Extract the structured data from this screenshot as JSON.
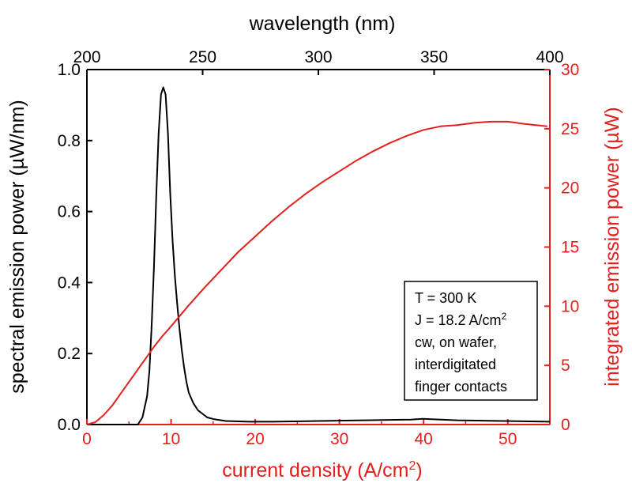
{
  "colors": {
    "black": "#000000",
    "red": "#e3201b"
  },
  "chart_data": {
    "type": "line",
    "top_axis": {
      "label": "wavelength (nm)",
      "range": [
        200,
        400
      ],
      "ticks": [
        200,
        250,
        300,
        350,
        400
      ]
    },
    "bottom_axis": {
      "label_main": "current density (A/cm",
      "label_sup": "2",
      "label_end": ")",
      "range": [
        0,
        55
      ],
      "ticks": [
        0,
        10,
        20,
        30,
        40,
        50
      ]
    },
    "left_axis": {
      "label": "spectral emission power (µW/nm)",
      "range": [
        0,
        1.0
      ],
      "ticks": [
        "0.0",
        "0.2",
        "0.4",
        "0.6",
        "0.8",
        "1.0"
      ]
    },
    "right_axis": {
      "label": "integrated emission power (µW)",
      "range": [
        0,
        30
      ],
      "ticks": [
        0,
        5,
        10,
        15,
        20,
        25,
        30
      ]
    },
    "series": [
      {
        "name": "spectral emission power",
        "color": "#000000",
        "x_axis": "wavelength (nm)",
        "y_axis": "spectral emission power (µW/nm)",
        "x": [
          200,
          222,
          224,
          226,
          227,
          228,
          229,
          230,
          231,
          232,
          233,
          234,
          235,
          236,
          237,
          238,
          239,
          240,
          241,
          242,
          243,
          244,
          246,
          248,
          250,
          252,
          255,
          260,
          270,
          280,
          300,
          320,
          340,
          345,
          360,
          380,
          400
        ],
        "y": [
          0.0,
          0.0,
          0.02,
          0.08,
          0.15,
          0.28,
          0.45,
          0.65,
          0.82,
          0.93,
          0.95,
          0.93,
          0.82,
          0.65,
          0.52,
          0.42,
          0.34,
          0.27,
          0.21,
          0.16,
          0.12,
          0.09,
          0.06,
          0.04,
          0.03,
          0.02,
          0.015,
          0.01,
          0.008,
          0.008,
          0.01,
          0.012,
          0.014,
          0.016,
          0.012,
          0.01,
          0.008
        ]
      },
      {
        "name": "integrated emission power",
        "color": "#e3201b",
        "x_axis": "current density (A/cm2)",
        "y_axis": "integrated emission power (µW)",
        "x": [
          0,
          1,
          2,
          3,
          4,
          5,
          6,
          7,
          8,
          9,
          10,
          12,
          14,
          16,
          18,
          20,
          22,
          24,
          26,
          28,
          30,
          32,
          34,
          36,
          38,
          40,
          42,
          44,
          46,
          48,
          50,
          52,
          54.7
        ],
        "y": [
          0,
          0.2,
          0.8,
          1.6,
          2.6,
          3.6,
          4.6,
          5.6,
          6.6,
          7.5,
          8.3,
          10.0,
          11.6,
          13.1,
          14.6,
          15.9,
          17.2,
          18.4,
          19.5,
          20.5,
          21.4,
          22.3,
          23.1,
          23.8,
          24.4,
          24.9,
          25.2,
          25.3,
          25.5,
          25.6,
          25.6,
          25.4,
          25.2
        ]
      }
    ],
    "annotation": {
      "line1": "T = 300 K",
      "line2_main": "J = 18.2 A/cm",
      "line2_sup": "2",
      "line3": "cw, on wafer,",
      "line4": "interdigitated",
      "line5": "finger contacts"
    }
  }
}
